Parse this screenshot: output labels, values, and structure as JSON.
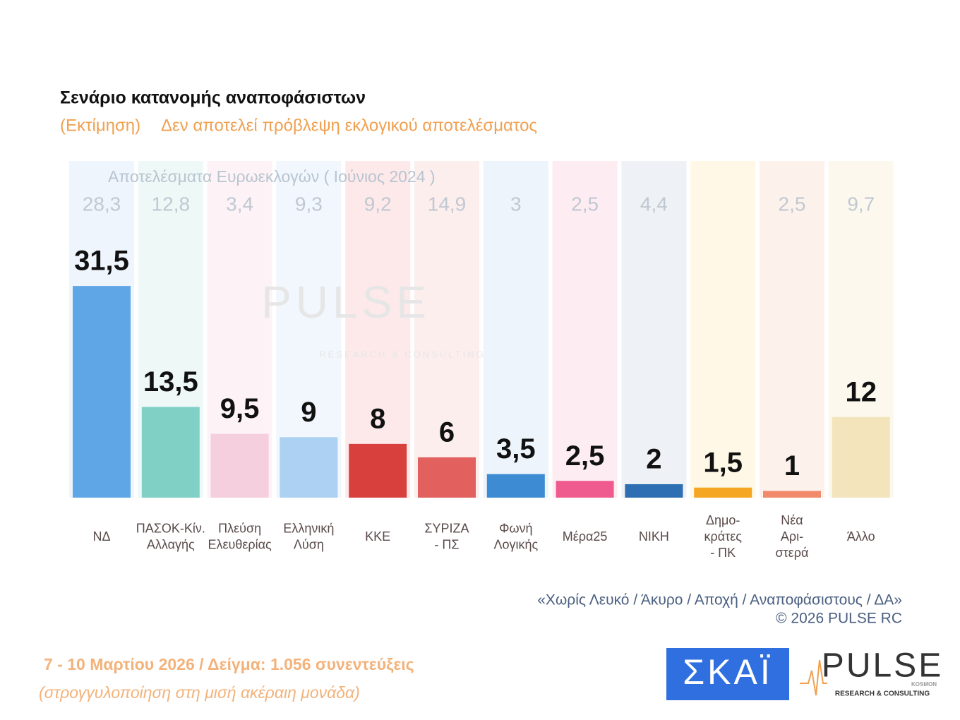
{
  "chart_data": {
    "type": "bar",
    "title": "Σενάριο κατανομής αναποφάσιστων",
    "subtitle": [
      "(Εκτίμηση)",
      "Δεν αποτελεί πρόβλεψη εκλογικού αποτελέσματος"
    ],
    "categories": [
      [
        "ΝΔ"
      ],
      [
        "ΠΑΣΟΚ-Κίν.",
        "Αλλαγής"
      ],
      [
        "Πλεύση",
        "Ελευθερίας"
      ],
      [
        "Ελληνική",
        "Λύση"
      ],
      [
        "ΚΚΕ"
      ],
      [
        "ΣΥΡΙΖΑ",
        "- ΠΣ"
      ],
      [
        "Φωνή",
        "Λογικής"
      ],
      [
        "Μέρα25"
      ],
      [
        "ΝΙΚΗ"
      ],
      [
        "Δημο-",
        "κράτες",
        "- ΠΚ"
      ],
      [
        "Νέα",
        "Αρι-",
        "στερά"
      ],
      [
        "Άλλο"
      ]
    ],
    "values": [
      31.5,
      13.5,
      9.5,
      9,
      8,
      6,
      3.5,
      2.5,
      2,
      1.5,
      1,
      12
    ],
    "value_labels": [
      "31,5",
      "13,5",
      "9,5",
      "9",
      "8",
      "6",
      "3,5",
      "2,5",
      "2",
      "1,5",
      "1",
      "12"
    ],
    "colors": [
      "#5fa6e6",
      "#80d0c6",
      "#f5cfdd",
      "#acd1f2",
      "#d8403d",
      "#e2605e",
      "#3d8bd2",
      "#ef5b8e",
      "#2d6fb2",
      "#f5a623",
      "#f08a6a",
      "#f3e4bb"
    ],
    "column_colors": [
      "#eef5fc",
      "#eef8f7",
      "#fdf3f6",
      "#f1f7fd",
      "#fde9ea",
      "#fdeeee",
      "#edf4fb",
      "#fdedf2",
      "#eef1f5",
      "#fff8e6",
      "#fdf1ec",
      "#fcf8ee"
    ],
    "euro_results": {
      "title": "Αποτελέσματα Ευρωεκλογών  ( Ιούνιος 2024 )",
      "values": [
        28.3,
        12.8,
        3.4,
        9.3,
        9.2,
        14.9,
        3,
        2.5,
        4.4,
        null,
        2.5,
        9.7
      ],
      "value_labels": [
        "28,3",
        "12,8",
        "3,4",
        "9,3",
        "9,2",
        "14,9",
        "3",
        "2,5",
        "4,4",
        null,
        "2,5",
        "9,7"
      ]
    },
    "note": "«Χωρίς Λευκό / Άκυρο / Αποχή / Αναποφάσιστους / ΔΑ»",
    "copyright": "©  2026  PULSE RC",
    "footer": [
      "7 - 10  Μαρτίου 2026  /  Δείγμα:  1.056 συνεντεύξεις",
      "(στρογγυλοποίηση στη μισή ακέραιη μονάδα)"
    ],
    "logos": {
      "skai": "ΣΚΑΪ",
      "pulse": "PULSE",
      "pulse_sub": "RESEARCH & CONSULTING",
      "pulse_tag": "KOSMON"
    }
  }
}
